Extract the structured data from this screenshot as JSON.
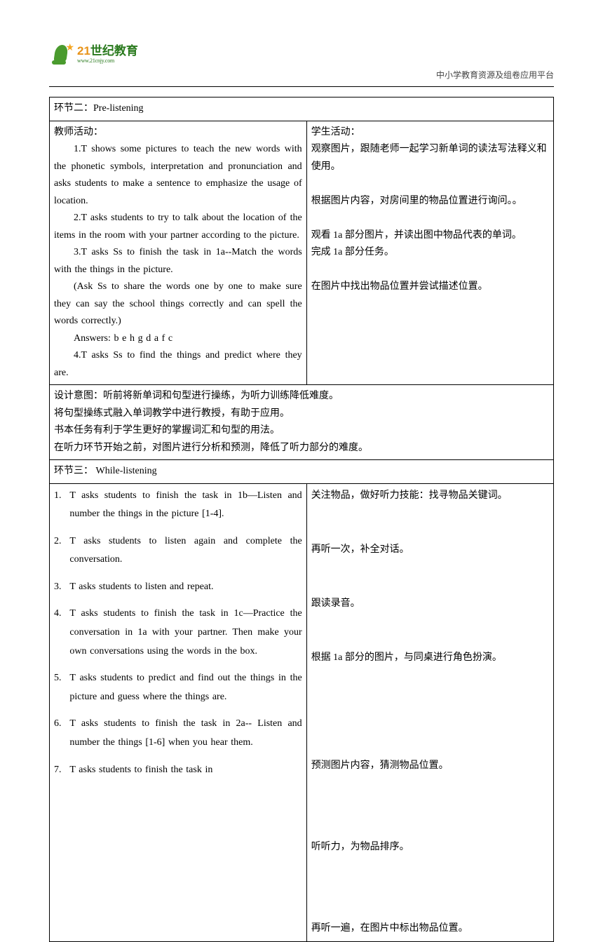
{
  "header": {
    "logo_cn_prefix": "21",
    "logo_cn_main": "世纪教育",
    "logo_url": "www.21cnjy.com",
    "right_text": "中小学教育资源及组卷应用平台"
  },
  "section2": {
    "title": "环节二：Pre-listening",
    "teacher_label": "教师活动：",
    "teacher_items": [
      "1.T shows some pictures to teach the new words with the phonetic symbols, interpretation and pronunciation and asks students to make a sentence to emphasize the usage of location.",
      "2.T asks students to try to talk about the location of the items in the room with your partner according to the picture.",
      "3.T asks Ss to finish the task in 1a--Match the words with the things in the picture.",
      "(Ask Ss to share the words one by one to make sure they can say the school things correctly and can spell the words correctly.)",
      "Answers: b e h g d a f c",
      "4.T asks Ss to find the things and predict where they are."
    ],
    "student_label": "学生活动：",
    "student_items": [
      "观察图片，跟随老师一起学习新单词的读法写法释义和使用。",
      "",
      "根据图片内容，对房间里的物品位置进行询问。。",
      "",
      "观看 1a 部分图片，并读出图中物品代表的单词。",
      "完成 1a 部分任务。",
      "",
      "在图片中找出物品位置并尝试描述位置。"
    ],
    "design_lines": [
      "设计意图：听前将新单词和句型进行操练，为听力训练降低难度。",
      "将句型操练式融入单词教学中进行教授，有助于应用。",
      "书本任务有利于学生更好的掌握词汇和句型的用法。",
      "在听力环节开始之前，对图片进行分析和预测，降低了听力部分的难度。"
    ]
  },
  "section3": {
    "title": "环节三： While-listening",
    "teacher_items": [
      "T asks students to finish the task in 1b—Listen and number the things in the picture [1-4].",
      "T asks students to listen again and complete the conversation.",
      "T asks students to listen and repeat.",
      "T asks students to finish the task in 1c—Practice the conversation in 1a with your partner. Then make your own conversations using the words in the box.",
      "T asks students to predict and find out the things in the picture and guess where the things are.",
      "T asks students to finish the task in 2a-- Listen and number the things [1-6] when you hear them.",
      "T asks students to finish the task in"
    ],
    "student_items": [
      "关注物品，做好听力技能：找寻物品关键词。",
      "",
      "再听一次，补全对话。",
      "",
      "跟读录音。",
      "",
      "根据 1a 部分的图片，与同桌进行角色扮演。",
      "",
      "",
      "",
      "预测图片内容，猜测物品位置。",
      "",
      "",
      "听听力，为物品排序。",
      "",
      "",
      "再听一遍，在图片中标出物品位置。"
    ]
  }
}
